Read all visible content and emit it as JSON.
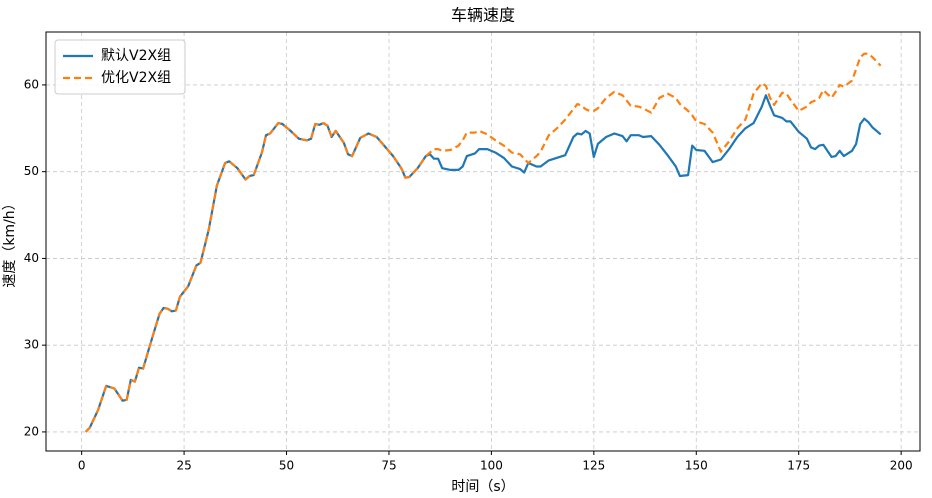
{
  "chart_data": {
    "type": "line",
    "title": "车辆速度",
    "x_label": "时间（s）",
    "y_label": "速度（km/h）",
    "x": [
      1,
      2,
      4,
      6,
      8,
      10,
      11,
      12,
      13,
      14,
      15,
      17,
      19,
      20,
      21,
      22,
      23,
      24,
      26,
      28,
      29,
      31,
      33,
      35,
      36,
      38,
      40,
      41,
      42,
      44,
      45,
      46,
      48,
      49,
      51,
      53,
      55,
      56,
      57,
      58,
      59,
      60,
      61,
      62,
      64,
      65,
      66,
      68,
      70,
      72,
      74,
      76,
      78,
      79,
      80,
      82,
      84,
      85,
      86,
      87,
      88,
      90,
      92,
      93,
      94,
      96,
      97,
      99,
      101,
      103,
      105,
      107,
      108,
      109,
      111,
      112,
      114,
      116,
      118,
      120,
      121,
      122,
      123,
      124,
      125,
      126,
      128,
      130,
      132,
      133,
      134,
      136,
      137,
      139,
      141,
      143,
      145,
      146,
      148,
      149,
      150,
      152,
      154,
      156,
      158,
      160,
      162,
      164,
      166,
      167,
      168,
      169,
      171,
      172,
      173,
      175,
      177,
      178,
      179,
      180,
      181,
      183,
      184,
      185,
      186,
      188,
      189,
      190,
      191,
      192,
      193,
      195
    ],
    "series": [
      {
        "name": "默认V2X组",
        "color": "#1f77b4",
        "dash": false,
        "values": [
          20,
          20.5,
          22.5,
          25.3,
          25,
          23.6,
          23.7,
          26,
          25.8,
          27.4,
          27.3,
          30.5,
          33.6,
          34.3,
          34.2,
          33.9,
          34,
          35.6,
          36.8,
          39.2,
          39.5,
          43.3,
          48.4,
          51,
          51.2,
          50.4,
          49.1,
          49.5,
          49.6,
          52.2,
          54.2,
          54.4,
          55.6,
          55.5,
          54.7,
          53.8,
          53.6,
          53.8,
          55.5,
          55.4,
          55.6,
          55.3,
          54,
          54.7,
          53.3,
          52,
          51.8,
          53.9,
          54.4,
          54,
          52.9,
          51.8,
          50.4,
          49.3,
          49.4,
          50.4,
          51.8,
          52,
          51.5,
          51.5,
          50.4,
          50.2,
          50.2,
          50.6,
          51.8,
          52.1,
          52.6,
          52.6,
          52.2,
          51.6,
          50.6,
          50.3,
          49.9,
          51,
          50.6,
          50.6,
          51.3,
          51.6,
          51.9,
          54,
          54.4,
          54.3,
          54.7,
          54.4,
          51.7,
          53.2,
          54,
          54.4,
          54.1,
          53.5,
          54.2,
          54.2,
          54,
          54.1,
          53.1,
          51.9,
          50.6,
          49.5,
          49.6,
          53,
          52.5,
          52.4,
          51.1,
          51.4,
          52.6,
          54,
          55,
          55.6,
          57.5,
          58.8,
          57.6,
          56.5,
          56.2,
          55.8,
          55.8,
          54.6,
          53.8,
          52.8,
          52.6,
          53,
          53.1,
          51.7,
          51.8,
          52.4,
          51.8,
          52.4,
          53.2,
          55.5,
          56.1,
          55.7,
          55.1,
          54.3
        ]
      },
      {
        "name": "优化V2X组",
        "color": "#ff7f0e",
        "dash": true,
        "values": [
          20,
          20.5,
          22.5,
          25.3,
          25,
          23.6,
          23.7,
          26,
          25.8,
          27.4,
          27.3,
          30.5,
          33.6,
          34.3,
          34.2,
          33.9,
          34,
          35.6,
          36.8,
          39.2,
          39.5,
          43.3,
          48.4,
          51,
          51.2,
          50.4,
          49.1,
          49.5,
          49.6,
          52.2,
          54.2,
          54.4,
          55.6,
          55.5,
          54.7,
          53.8,
          53.6,
          53.8,
          55.5,
          55.4,
          55.6,
          55.3,
          54,
          54.7,
          53.3,
          52,
          51.8,
          53.9,
          54.4,
          54,
          52.9,
          51.8,
          50.4,
          49.3,
          49.4,
          50.4,
          51.8,
          52.2,
          52.6,
          52.6,
          52.4,
          52.5,
          53,
          53.6,
          54.5,
          54.5,
          54.7,
          54.3,
          53.6,
          53,
          52.2,
          52,
          51.5,
          51,
          51.8,
          52.3,
          54.2,
          55,
          56,
          57.2,
          57.8,
          57.6,
          57.2,
          57,
          57,
          57.3,
          58.5,
          59.2,
          58.8,
          58.2,
          57.6,
          57.5,
          57.3,
          56.8,
          58.5,
          59,
          58.5,
          57.8,
          57,
          56.5,
          55.8,
          55.5,
          54.5,
          52.3,
          53.5,
          55,
          56,
          59,
          60.2,
          59.9,
          58.5,
          57.7,
          59.1,
          59,
          58.3,
          57,
          57.5,
          58,
          58.2,
          58.5,
          59.4,
          58.5,
          59.2,
          60,
          59.8,
          60.5,
          61.8,
          63.2,
          63.6,
          63.6,
          63.2,
          62.2
        ]
      }
    ],
    "xlim": [
      -8.7,
      204.6
    ],
    "ylim": [
      17.8,
      66.1
    ],
    "xticks": [
      0,
      25,
      50,
      75,
      100,
      125,
      150,
      175,
      200
    ],
    "yticks": [
      20,
      30,
      40,
      50,
      60
    ],
    "grid": true,
    "legend": "upper left"
  }
}
